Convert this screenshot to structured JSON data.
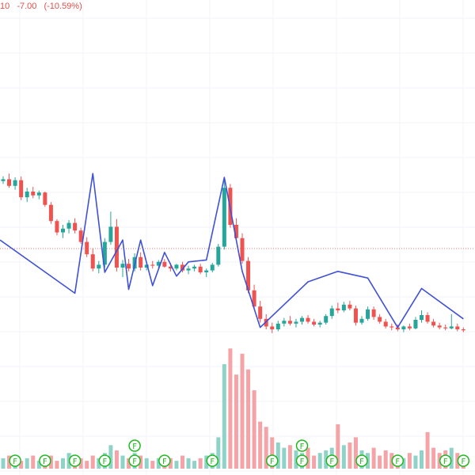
{
  "legend": {
    "price_fragment": "10",
    "change": "-7.00",
    "change_pct": "(-10.59%)"
  },
  "colors": {
    "up": "#26a69a",
    "down": "#ef5350",
    "up_volume": "#8fd3c8",
    "down_volume": "#f5a3a7",
    "zigzag": "#3f51d6",
    "grid": "#f0f3fa",
    "price_line": "#ef5350",
    "flag_stroke": "#20b820",
    "legend_text": "#e0504a"
  },
  "icons": {
    "flag": "F"
  },
  "chart_data": {
    "type": "candlestick",
    "price_range": [
      0,
      73
    ],
    "current_price_line": 31,
    "candles": [
      [
        38.1,
        38.6,
        37.8,
        38.3
      ],
      [
        38.3,
        38.9,
        37.4,
        37.6
      ],
      [
        37.6,
        38.5,
        37.2,
        38.2
      ],
      [
        38.2,
        38.6,
        36.1,
        36.4
      ],
      [
        36.4,
        37.4,
        35.9,
        37.0
      ],
      [
        37.0,
        37.5,
        36.3,
        36.6
      ],
      [
        36.6,
        37.1,
        36.2,
        36.9
      ],
      [
        36.9,
        37.0,
        35.4,
        35.6
      ],
      [
        35.6,
        35.9,
        33.6,
        33.9
      ],
      [
        33.9,
        34.1,
        32.4,
        32.7
      ],
      [
        32.7,
        33.5,
        32.1,
        33.1
      ],
      [
        33.1,
        34.0,
        32.6,
        33.7
      ],
      [
        33.7,
        34.2,
        32.6,
        32.9
      ],
      [
        32.9,
        33.2,
        31.5,
        31.7
      ],
      [
        31.7,
        32.2,
        30.1,
        30.4
      ],
      [
        30.4,
        31.0,
        28.6,
        28.9
      ],
      [
        28.9,
        29.7,
        28.4,
        29.3
      ],
      [
        29.3,
        32.1,
        29.0,
        31.7
      ],
      [
        31.7,
        34.9,
        31.4,
        33.3
      ],
      [
        33.3,
        34.1,
        28.6,
        29.0
      ],
      [
        29.0,
        29.8,
        28.0,
        29.4
      ],
      [
        29.4,
        29.9,
        28.6,
        28.9
      ],
      [
        28.9,
        30.5,
        28.6,
        30.1
      ],
      [
        30.1,
        30.6,
        28.7,
        29.0
      ],
      [
        29.0,
        29.6,
        28.7,
        29.3
      ],
      [
        29.3,
        29.7,
        28.9,
        29.2
      ],
      [
        29.2,
        29.8,
        28.9,
        29.6
      ],
      [
        29.6,
        29.9,
        29.0,
        29.1
      ],
      [
        29.1,
        29.5,
        28.6,
        28.9
      ],
      [
        28.9,
        29.4,
        28.7,
        29.3
      ],
      [
        29.3,
        29.6,
        28.5,
        28.7
      ],
      [
        28.7,
        29.2,
        28.3,
        28.9
      ],
      [
        28.9,
        29.3,
        28.6,
        29.1
      ],
      [
        29.1,
        29.4,
        28.3,
        28.5
      ],
      [
        28.5,
        28.9,
        28.0,
        28.7
      ],
      [
        28.7,
        29.5,
        28.5,
        29.3
      ],
      [
        29.3,
        31.5,
        29.1,
        31.2
      ],
      [
        31.2,
        38.5,
        30.9,
        37.4
      ],
      [
        37.4,
        37.8,
        33.2,
        33.5
      ],
      [
        33.5,
        34.2,
        31.8,
        32.1
      ],
      [
        32.1,
        32.6,
        29.4,
        29.7
      ],
      [
        29.7,
        30.1,
        26.3,
        26.6
      ],
      [
        26.6,
        27.2,
        24.6,
        24.9
      ],
      [
        24.9,
        25.5,
        23.2,
        23.6
      ],
      [
        23.6,
        24.1,
        22.5,
        22.8
      ],
      [
        22.8,
        23.2,
        22.1,
        22.5
      ],
      [
        22.5,
        23.4,
        22.3,
        23.1
      ],
      [
        23.1,
        23.7,
        22.8,
        23.4
      ],
      [
        23.4,
        23.9,
        22.9,
        23.1
      ],
      [
        23.1,
        23.6,
        22.7,
        23.3
      ],
      [
        23.3,
        23.9,
        23.0,
        23.7
      ],
      [
        23.7,
        24.0,
        23.1,
        23.3
      ],
      [
        23.3,
        23.6,
        22.8,
        23.0
      ],
      [
        23.0,
        23.4,
        22.7,
        23.2
      ],
      [
        23.2,
        24.1,
        23.0,
        23.9
      ],
      [
        23.9,
        25.0,
        23.6,
        24.7
      ],
      [
        24.7,
        25.3,
        24.2,
        24.5
      ],
      [
        24.5,
        25.4,
        24.3,
        25.1
      ],
      [
        25.1,
        25.5,
        24.5,
        24.7
      ],
      [
        24.7,
        25.0,
        22.9,
        23.2
      ],
      [
        23.2,
        23.9,
        23.0,
        23.6
      ],
      [
        23.6,
        24.9,
        23.4,
        24.6
      ],
      [
        24.6,
        24.9,
        23.5,
        23.8
      ],
      [
        23.8,
        24.1,
        23.1,
        23.3
      ],
      [
        23.3,
        23.6,
        22.6,
        22.8
      ],
      [
        22.8,
        23.1,
        22.4,
        22.7
      ],
      [
        22.7,
        23.0,
        22.3,
        22.5
      ],
      [
        22.5,
        22.9,
        22.2,
        22.8
      ],
      [
        22.8,
        23.1,
        22.4,
        22.6
      ],
      [
        22.6,
        23.8,
        22.5,
        23.5
      ],
      [
        23.5,
        24.5,
        23.2,
        24.0
      ],
      [
        24.0,
        24.3,
        23.1,
        23.3
      ],
      [
        23.3,
        23.6,
        22.7,
        22.9
      ],
      [
        22.9,
        23.2,
        22.5,
        22.7
      ],
      [
        22.7,
        23.0,
        22.4,
        22.6
      ],
      [
        22.6,
        24.1,
        22.5,
        22.8
      ],
      [
        22.8,
        23.1,
        22.3,
        22.5
      ],
      [
        22.5,
        22.7,
        22.2,
        22.4
      ]
    ],
    "volume": [
      4,
      5,
      4,
      3,
      4,
      5,
      3,
      4,
      5,
      3,
      4,
      6,
      5,
      4,
      3,
      5,
      4,
      6,
      9,
      7,
      5,
      4,
      6,
      5,
      4,
      3,
      4,
      5,
      4,
      3,
      5,
      4,
      3,
      4,
      5,
      6,
      12,
      40,
      46,
      36,
      44,
      38,
      30,
      18,
      16,
      12,
      10,
      8,
      9,
      7,
      6,
      8,
      5,
      6,
      7,
      8,
      17,
      9,
      10,
      12,
      7,
      6,
      8,
      5,
      7,
      6,
      5,
      4,
      6,
      5,
      7,
      14,
      8,
      6,
      7,
      8,
      6,
      5
    ],
    "zigzag_prices": [
      31.9,
      [
        12,
        26.3
      ],
      [
        15,
        38.9
      ],
      [
        17,
        28.5
      ],
      [
        20,
        31.9
      ],
      [
        21,
        26.7
      ],
      [
        23,
        31.9
      ],
      [
        25,
        27.1
      ],
      [
        27,
        30.6
      ],
      [
        29,
        28.1
      ],
      [
        31,
        29.6
      ],
      [
        34,
        29.8
      ],
      [
        37,
        38.5
      ],
      [
        40,
        28.6
      ],
      [
        43,
        22.7
      ],
      [
        51,
        27.5
      ],
      [
        56,
        28.6
      ],
      [
        61,
        27.9
      ],
      [
        66,
        22.7
      ],
      [
        70,
        26.8
      ],
      [
        77,
        23.6
      ]
    ],
    "flag_rows": [
      {
        "row": "lower",
        "candles": [
          2,
          7,
          12,
          17,
          22,
          27,
          35,
          45,
          50,
          55,
          60,
          66,
          74,
          77
        ]
      },
      {
        "row": "upper",
        "candles": [
          22,
          50
        ]
      }
    ]
  }
}
